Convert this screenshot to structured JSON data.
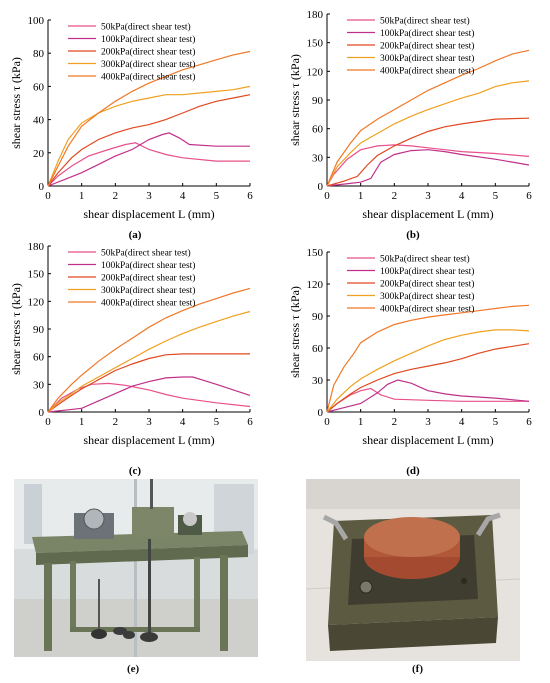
{
  "chart_data": [
    {
      "type": "line",
      "panel": "(a)",
      "xlabel": "shear displacement L (mm)",
      "ylabel": "shear stress τ (kPa)",
      "xlim": [
        0,
        6
      ],
      "ylim": [
        0,
        100
      ],
      "xticks": [
        0,
        1,
        2,
        3,
        4,
        5,
        6
      ],
      "yticks": [
        0,
        20,
        40,
        60,
        80,
        100
      ],
      "legend_position": "top-left",
      "series": [
        {
          "name": "50kPa(direct shear test)",
          "color": "#e8508a",
          "x": [
            0,
            0.3,
            0.7,
            1.2,
            1.8,
            2.3,
            2.6,
            3,
            3.5,
            4,
            5,
            6
          ],
          "y": [
            0,
            6,
            12,
            18,
            22,
            25,
            26,
            22,
            19,
            17,
            15,
            15
          ]
        },
        {
          "name": "100kPa(direct shear test)",
          "color": "#c0308a",
          "x": [
            0,
            0.5,
            1,
            1.5,
            2,
            2.5,
            3,
            3.4,
            3.6,
            3.9,
            4.2,
            5,
            6
          ],
          "y": [
            0,
            4,
            8,
            13,
            18,
            22,
            28,
            31,
            32,
            29,
            25,
            24,
            24
          ]
        },
        {
          "name": "200kPa(direct shear test)",
          "color": "#e04820",
          "x": [
            0,
            0.3,
            0.7,
            1,
            1.5,
            2,
            2.5,
            3,
            3.5,
            4,
            4.5,
            5,
            5.5,
            6
          ],
          "y": [
            0,
            8,
            17,
            22,
            28,
            32,
            35,
            37,
            40,
            44,
            48,
            51,
            53,
            55
          ]
        },
        {
          "name": "300kPa(direct shear test)",
          "color": "#f0a020",
          "x": [
            0,
            0.3,
            0.6,
            1,
            1.5,
            2,
            2.5,
            3,
            3.5,
            4,
            4.5,
            5,
            5.5,
            6
          ],
          "y": [
            0,
            15,
            28,
            38,
            44,
            48,
            51,
            53,
            55,
            55,
            56,
            57,
            58,
            60
          ]
        },
        {
          "name": "400kPa(direct shear test)",
          "color": "#f07828",
          "x": [
            0,
            0.3,
            0.6,
            1,
            1.5,
            2,
            2.5,
            3,
            3.5,
            4,
            4.5,
            5,
            5.5,
            6
          ],
          "y": [
            0,
            12,
            24,
            36,
            44,
            51,
            57,
            62,
            66,
            70,
            73,
            76,
            79,
            81
          ]
        }
      ]
    },
    {
      "type": "line",
      "panel": "(b)",
      "xlabel": "shear displacement L (mm)",
      "ylabel": "shear stress τ (kPa)",
      "xlim": [
        0,
        6
      ],
      "ylim": [
        0,
        180
      ],
      "xticks": [
        0,
        1,
        2,
        3,
        4,
        5,
        6
      ],
      "yticks": [
        0,
        30,
        60,
        90,
        120,
        150,
        180
      ],
      "legend_position": "top-left",
      "series": [
        {
          "name": "50kPa(direct shear test)",
          "color": "#e8508a",
          "x": [
            0,
            0.2,
            0.6,
            1,
            1.5,
            2,
            2.5,
            3,
            3.5,
            4,
            5,
            6
          ],
          "y": [
            0,
            12,
            28,
            38,
            42,
            43,
            42,
            40,
            38,
            36,
            34,
            31
          ]
        },
        {
          "name": "100kPa(direct shear test)",
          "color": "#c0308a",
          "x": [
            0,
            0.5,
            1,
            1.3,
            1.6,
            2,
            2.5,
            3,
            3.5,
            4,
            5,
            6
          ],
          "y": [
            0,
            2,
            4,
            8,
            25,
            33,
            37,
            38,
            36,
            33,
            28,
            22
          ]
        },
        {
          "name": "200kPa(direct shear test)",
          "color": "#e04820",
          "x": [
            0,
            0.5,
            0.9,
            1.2,
            1.5,
            2,
            2.5,
            3,
            3.5,
            4,
            5,
            6
          ],
          "y": [
            0,
            5,
            10,
            22,
            32,
            42,
            50,
            57,
            62,
            65,
            70,
            71
          ]
        },
        {
          "name": "300kPa(direct shear test)",
          "color": "#f0a020",
          "x": [
            0,
            0.3,
            0.7,
            1,
            1.5,
            2,
            2.5,
            3,
            3.5,
            4,
            4.5,
            5,
            5.5,
            6
          ],
          "y": [
            0,
            20,
            35,
            45,
            55,
            65,
            73,
            80,
            86,
            92,
            97,
            104,
            108,
            110
          ]
        },
        {
          "name": "400kPa(direct shear test)",
          "color": "#f07828",
          "x": [
            0,
            0.3,
            0.7,
            1,
            1.5,
            2,
            2.5,
            3,
            3.5,
            4,
            4.5,
            5,
            5.5,
            6
          ],
          "y": [
            0,
            25,
            45,
            58,
            70,
            80,
            90,
            100,
            108,
            116,
            123,
            131,
            138,
            142
          ]
        }
      ]
    },
    {
      "type": "line",
      "panel": "(c)",
      "xlabel": "shear displacement L (mm)",
      "ylabel": "shear stress τ (kPa)",
      "xlim": [
        0,
        6
      ],
      "ylim": [
        0,
        180
      ],
      "xticks": [
        0,
        1,
        2,
        3,
        4,
        5,
        6
      ],
      "yticks": [
        0,
        30,
        60,
        90,
        120,
        150,
        180
      ],
      "legend_position": "top-left",
      "series": [
        {
          "name": "50kPa(direct shear test)",
          "color": "#e8508a",
          "x": [
            0,
            0.4,
            0.9,
            1.3,
            1.8,
            2.3,
            3,
            3.5,
            4,
            5,
            6
          ],
          "y": [
            0,
            15,
            25,
            30,
            31,
            29,
            24,
            19,
            15,
            10,
            6
          ]
        },
        {
          "name": "100kPa(direct shear test)",
          "color": "#c0308a",
          "x": [
            0,
            0.5,
            1,
            1.5,
            2,
            2.5,
            3,
            3.5,
            4,
            4.3,
            5,
            6
          ],
          "y": [
            0,
            2,
            4,
            12,
            20,
            28,
            33,
            37,
            38,
            38,
            30,
            18
          ]
        },
        {
          "name": "200kPa(direct shear test)",
          "color": "#e04820",
          "x": [
            0,
            0.3,
            0.7,
            1,
            1.5,
            2,
            2.5,
            3,
            3.5,
            4,
            4.5,
            5,
            6
          ],
          "y": [
            0,
            8,
            18,
            25,
            35,
            45,
            52,
            58,
            62,
            63,
            63,
            63,
            63
          ]
        },
        {
          "name": "300kPa(direct shear test)",
          "color": "#f0a020",
          "x": [
            0,
            0.3,
            0.7,
            1,
            1.5,
            2,
            2.5,
            3,
            3.5,
            4,
            4.5,
            5,
            5.5,
            6
          ],
          "y": [
            0,
            10,
            20,
            28,
            38,
            48,
            58,
            68,
            77,
            85,
            92,
            98,
            104,
            109
          ]
        },
        {
          "name": "400kPa(direct shear test)",
          "color": "#f07828",
          "x": [
            0,
            0.3,
            0.7,
            1,
            1.5,
            2,
            2.5,
            3,
            3.5,
            4,
            4.5,
            5,
            5.5,
            6
          ],
          "y": [
            0,
            15,
            30,
            40,
            55,
            68,
            80,
            92,
            102,
            110,
            117,
            123,
            129,
            134
          ]
        }
      ]
    },
    {
      "type": "line",
      "panel": "(d)",
      "xlabel": "shear displacement L (mm)",
      "ylabel": "shear stress τ (kPa)",
      "xlim": [
        0,
        6
      ],
      "ylim": [
        0,
        150
      ],
      "xticks": [
        0,
        1,
        2,
        3,
        4,
        5,
        6
      ],
      "yticks": [
        0,
        30,
        60,
        90,
        120,
        150
      ],
      "legend_position": "top-left",
      "series": [
        {
          "name": "50kPa(direct shear test)",
          "color": "#e8508a",
          "x": [
            0,
            0.3,
            0.7,
            1,
            1.3,
            1.6,
            2,
            3,
            4,
            5,
            6
          ],
          "y": [
            0,
            8,
            16,
            20,
            22,
            16,
            12,
            11,
            10,
            10,
            10
          ]
        },
        {
          "name": "100kPa(direct shear test)",
          "color": "#c0308a",
          "x": [
            0,
            0.5,
            1,
            1.5,
            1.8,
            2.1,
            2.5,
            3,
            3.5,
            4,
            5,
            6
          ],
          "y": [
            0,
            4,
            8,
            18,
            26,
            30,
            27,
            20,
            17,
            15,
            13,
            10
          ]
        },
        {
          "name": "200kPa(direct shear test)",
          "color": "#e04820",
          "x": [
            0,
            0.3,
            0.7,
            1,
            1.5,
            2,
            2.5,
            3,
            3.5,
            4,
            4.5,
            5,
            6
          ],
          "y": [
            0,
            8,
            17,
            23,
            30,
            36,
            40,
            43,
            46,
            50,
            55,
            59,
            64
          ]
        },
        {
          "name": "300kPa(direct shear test)",
          "color": "#f0a020",
          "x": [
            0,
            0.3,
            0.7,
            1,
            1.5,
            2,
            2.5,
            3,
            3.5,
            4,
            4.5,
            5,
            5.5,
            6
          ],
          "y": [
            0,
            12,
            24,
            31,
            40,
            48,
            55,
            62,
            68,
            72,
            75,
            77,
            77,
            76
          ]
        },
        {
          "name": "400kPa(direct shear test)",
          "color": "#f07828",
          "x": [
            0,
            0.2,
            0.5,
            0.8,
            1,
            1.5,
            2,
            2.5,
            3,
            3.5,
            4,
            4.5,
            5,
            5.5,
            6
          ],
          "y": [
            0,
            25,
            42,
            55,
            65,
            75,
            82,
            86,
            89,
            91,
            93,
            95,
            97,
            99,
            100
          ]
        }
      ]
    }
  ],
  "photos": [
    {
      "caption": "(e)",
      "subject": "direct shear apparatus"
    },
    {
      "caption": "(f)",
      "subject": "shear box with soil sample"
    }
  ]
}
